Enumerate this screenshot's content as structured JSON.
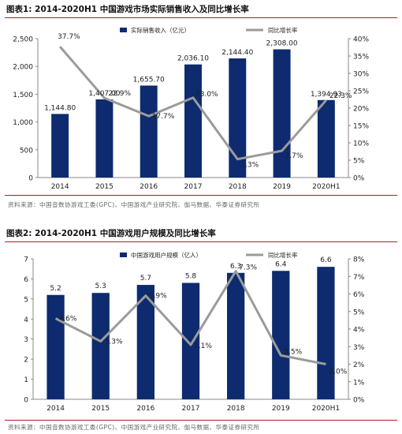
{
  "figures": [
    {
      "title": "图表1:  2014-2020H1 中国游戏市场实际销售收入及同比增长率",
      "source": "资料来源：中国音数协游戏工委(GPC)、中国游戏产业研究院、伽马数据、华泰证券研究所"
    },
    {
      "title": "图表2:  2014-2020H1 中国游戏用户规模及同比增长率",
      "source": "资料来源：中国音数协游戏工委(GPC)、中国游戏产业研究院、伽马数据、华泰证券研究所"
    }
  ],
  "chart_data": [
    {
      "type": "bar",
      "categories": [
        "2014",
        "2015",
        "2016",
        "2017",
        "2018",
        "2019",
        "2020H1"
      ],
      "series": [
        {
          "name": "实际销售收入（亿元）",
          "kind": "bar",
          "axis": "left",
          "values": [
            1144.8,
            1407.0,
            1655.7,
            2036.1,
            2144.4,
            2308.0,
            1394.93
          ],
          "labels": [
            "1,144.80",
            "1,407.00",
            "1,655.70",
            "2,036.10",
            "2,144.40",
            "2,308.00",
            "1,394.93"
          ]
        },
        {
          "name": "同比增长率",
          "kind": "line",
          "axis": "right",
          "values": [
            37.7,
            22.9,
            17.7,
            23.0,
            5.3,
            7.7,
            22.3
          ],
          "labels": [
            "37.7%",
            "22.9%",
            "17.7%",
            "23.0%",
            "5.3%",
            "7.7%",
            "22.3%"
          ]
        }
      ],
      "ylim_left": [
        0,
        2500
      ],
      "yticks_left": [
        "0",
        "500",
        "1,000",
        "1,500",
        "2,000",
        "2,500"
      ],
      "ylim_right": [
        0,
        40
      ],
      "yticks_right": [
        "0%",
        "5%",
        "10%",
        "15%",
        "20%",
        "25%",
        "30%",
        "35%",
        "40%"
      ],
      "legend": "top",
      "colors": {
        "bar": "#0d2b6e",
        "line": "#9b9b9b"
      }
    },
    {
      "type": "bar",
      "categories": [
        "2014",
        "2015",
        "2016",
        "2017",
        "2018",
        "2019",
        "2020H1"
      ],
      "series": [
        {
          "name": "中国游戏用户规模（亿人）",
          "kind": "bar",
          "axis": "left",
          "values": [
            5.2,
            5.3,
            5.7,
            5.8,
            6.3,
            6.4,
            6.6
          ],
          "labels": [
            "5.2",
            "5.3",
            "5.7",
            "5.8",
            "6.3",
            "6.4",
            "6.6"
          ]
        },
        {
          "name": "同比增长率",
          "kind": "line",
          "axis": "right",
          "values": [
            4.6,
            3.3,
            5.9,
            3.1,
            7.3,
            2.5,
            2.0
          ],
          "labels": [
            "4.6%",
            "3.3%",
            "5.9%",
            "3.1%",
            "7.3%",
            "2.5%",
            "2.0%"
          ]
        }
      ],
      "ylim_left": [
        0,
        7
      ],
      "yticks_left": [
        "0",
        "1",
        "2",
        "3",
        "4",
        "5",
        "6",
        "7"
      ],
      "ylim_right": [
        0,
        8
      ],
      "yticks_right": [
        "0%",
        "1%",
        "2%",
        "3%",
        "4%",
        "5%",
        "6%",
        "7%",
        "8%"
      ],
      "legend": "top",
      "colors": {
        "bar": "#0d2b6e",
        "line": "#9b9b9b"
      }
    }
  ]
}
